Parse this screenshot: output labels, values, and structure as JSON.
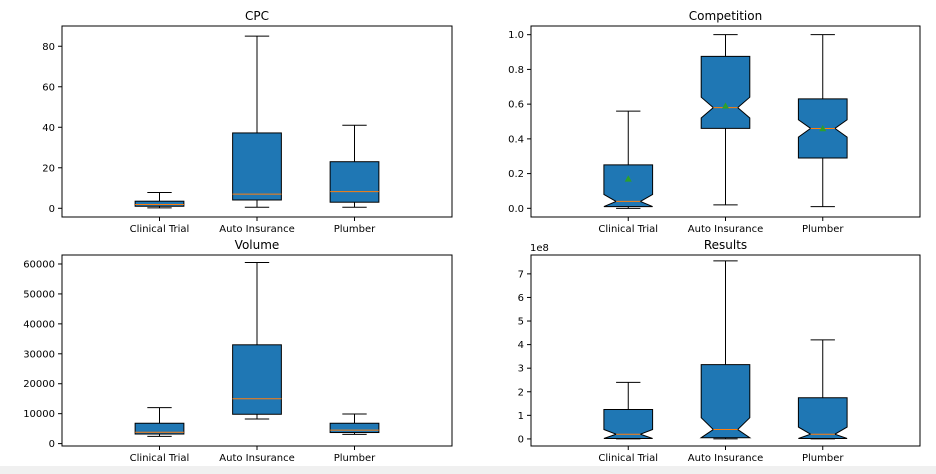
{
  "chart_data": [
    {
      "type": "box",
      "title": "CPC",
      "xlabel": "",
      "ylabel": "",
      "categories": [
        "Clinical Trial",
        "Auto Insurance",
        "Plumber"
      ],
      "ylim": [
        -4.3,
        90
      ],
      "yticks": [
        0,
        20,
        40,
        60,
        80
      ],
      "ytick_labels": [
        "0",
        "20",
        "40",
        "60",
        "80"
      ],
      "offset_text": "",
      "notch": false,
      "show_mean": false,
      "boxes": [
        {
          "whislo": 0.2,
          "q1": 1.0,
          "med": 1.9,
          "q3": 3.5,
          "whishi": 7.8
        },
        {
          "whislo": 0.5,
          "q1": 4.1,
          "med": 7.0,
          "q3": 37.2,
          "whishi": 85.0
        },
        {
          "whislo": 0.5,
          "q1": 3.0,
          "med": 8.2,
          "q3": 23.0,
          "whishi": 41.0
        }
      ]
    },
    {
      "type": "box",
      "title": "Competition",
      "xlabel": "",
      "ylabel": "",
      "categories": [
        "Clinical Trial",
        "Auto Insurance",
        "Plumber"
      ],
      "ylim": [
        -0.05,
        1.05
      ],
      "yticks": [
        0,
        0.2,
        0.4,
        0.6,
        0.8,
        1.0
      ],
      "ytick_labels": [
        "0.0",
        "0.2",
        "0.4",
        "0.6",
        "0.8",
        "1.0"
      ],
      "offset_text": "",
      "notch": true,
      "show_mean": true,
      "boxes": [
        {
          "whislo": 0.0,
          "q1": 0.01,
          "med": 0.04,
          "q3": 0.25,
          "whishi": 0.56,
          "mean": 0.17,
          "notch_lo": 0.01,
          "notch_hi": 0.08
        },
        {
          "whislo": 0.02,
          "q1": 0.46,
          "med": 0.58,
          "q3": 0.875,
          "whishi": 1.0,
          "mean": 0.59,
          "notch_lo": 0.52,
          "notch_hi": 0.64
        },
        {
          "whislo": 0.01,
          "q1": 0.29,
          "med": 0.46,
          "q3": 0.63,
          "whishi": 1.0,
          "mean": 0.46,
          "notch_lo": 0.41,
          "notch_hi": 0.51
        }
      ]
    },
    {
      "type": "box",
      "title": "Volume",
      "xlabel": "",
      "ylabel": "",
      "categories": [
        "Clinical Trial",
        "Auto Insurance",
        "Plumber"
      ],
      "ylim": [
        -800,
        63000
      ],
      "yticks": [
        0,
        10000,
        20000,
        30000,
        40000,
        50000,
        60000
      ],
      "ytick_labels": [
        "0",
        "10000",
        "20000",
        "30000",
        "40000",
        "50000",
        "60000"
      ],
      "offset_text": "",
      "notch": false,
      "show_mean": false,
      "boxes": [
        {
          "whislo": 2400,
          "q1": 3200,
          "med": 3800,
          "q3": 6800,
          "whishi": 12000
        },
        {
          "whislo": 8200,
          "q1": 9800,
          "med": 15000,
          "q3": 33000,
          "whishi": 60500
        },
        {
          "whislo": 3100,
          "q1": 3700,
          "med": 4500,
          "q3": 6800,
          "whishi": 9900
        }
      ]
    },
    {
      "type": "box",
      "title": "Results",
      "xlabel": "",
      "ylabel": "",
      "categories": [
        "Clinical Trial",
        "Auto Insurance",
        "Plumber"
      ],
      "ylim": [
        -0.3,
        7.8
      ],
      "yticks": [
        0,
        1,
        2,
        3,
        4,
        5,
        6,
        7
      ],
      "ytick_labels": [
        "0",
        "1",
        "2",
        "3",
        "4",
        "5",
        "6",
        "7"
      ],
      "offset_text": "1e8",
      "notch": true,
      "show_mean": false,
      "boxes": [
        {
          "whislo": 0.0,
          "q1": 0.02,
          "med": 0.2,
          "q3": 1.25,
          "whishi": 2.4,
          "notch_lo": 0.02,
          "notch_hi": 0.4
        },
        {
          "whislo": 0.0,
          "q1": 0.05,
          "med": 0.4,
          "q3": 3.15,
          "whishi": 7.55,
          "notch_lo": 0.05,
          "notch_hi": 0.9
        },
        {
          "whislo": 0.0,
          "q1": 0.02,
          "med": 0.2,
          "q3": 1.75,
          "whishi": 4.2,
          "notch_lo": 0.02,
          "notch_hi": 0.5
        }
      ]
    }
  ],
  "colors": {
    "box_fill": "#1f77b4",
    "median": "#ff7f0e",
    "mean_marker": "#2ca02c",
    "line": "#000000"
  }
}
